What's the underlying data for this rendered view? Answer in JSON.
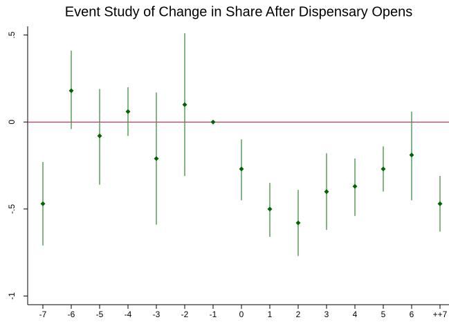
{
  "chart_data": {
    "type": "errorbar",
    "title": "Event Study of Change in Share After Dispensary Opens",
    "categories": [
      "-7",
      "-6",
      "-5",
      "-4",
      "-3",
      "-2",
      "-1",
      "0",
      "1",
      "2",
      "3",
      "4",
      "5",
      "6",
      "++7"
    ],
    "series": [
      {
        "color": "#006400",
        "ci_color": "#3f8f3f",
        "values": [
          -0.47,
          0.18,
          -0.08,
          0.06,
          -0.21,
          0.1,
          0,
          -0.27,
          -0.5,
          -0.58,
          -0.4,
          -0.37,
          -0.27,
          -0.19,
          -0.47
        ],
        "lower": [
          -0.71,
          -0.04,
          -0.36,
          -0.08,
          -0.59,
          -0.31,
          0,
          -0.45,
          -0.66,
          -0.77,
          -0.62,
          -0.54,
          -0.4,
          -0.45,
          -0.63
        ],
        "upper": [
          -0.23,
          0.41,
          0.19,
          0.2,
          0.17,
          0.51,
          0,
          -0.1,
          -0.35,
          -0.39,
          -0.18,
          -0.21,
          -0.14,
          0.06,
          -0.31
        ]
      }
    ],
    "reference_line": {
      "value": 0,
      "color": "#c0002a"
    },
    "ylim": [
      -1.05,
      0.55
    ],
    "yticks": [
      {
        "value": 0.5,
        "label": ".5"
      },
      0,
      {
        "value": -0.5,
        "label": "-.5"
      },
      -1
    ]
  }
}
